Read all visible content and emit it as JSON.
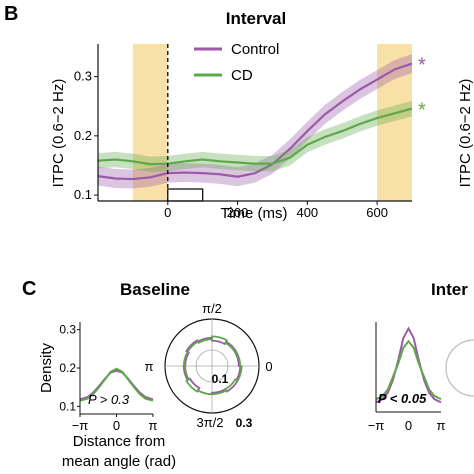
{
  "colors": {
    "control": "#9b59a8",
    "cd": "#5fa84a",
    "highlight": "#f6dc97"
  },
  "panel_b": {
    "letter": "B",
    "title": "Interval"
  },
  "panel_c": {
    "letter": "C",
    "baseline_title": "Baseline",
    "interval_title": "Inter"
  },
  "chart_data": [
    {
      "type": "line",
      "title": "Interval",
      "xlabel": "Time (ms)",
      "ylabel": "ITPC (0.6−2 Hz)",
      "xlim": [
        -200,
        700
      ],
      "ylim": [
        0.09,
        0.355
      ],
      "xticks": [
        0,
        200,
        400,
        600
      ],
      "yticks": [
        0.1,
        0.2,
        0.3
      ],
      "shaded_windows": [
        [
          -100,
          0
        ],
        [
          600,
          700
        ]
      ],
      "onset_line_x": 0,
      "stimulus_box": [
        0,
        100
      ],
      "x": [
        -200,
        -150,
        -100,
        -50,
        0,
        50,
        100,
        150,
        200,
        250,
        300,
        350,
        400,
        450,
        500,
        550,
        600,
        650,
        700
      ],
      "series": [
        {
          "name": "Control",
          "key": "control",
          "values": [
            0.132,
            0.128,
            0.127,
            0.13,
            0.137,
            0.138,
            0.137,
            0.135,
            0.131,
            0.137,
            0.152,
            0.178,
            0.208,
            0.236,
            0.258,
            0.278,
            0.295,
            0.312,
            0.322
          ],
          "band": 0.016,
          "significance": "*"
        },
        {
          "name": "CD",
          "key": "cd",
          "values": [
            0.158,
            0.16,
            0.157,
            0.152,
            0.153,
            0.157,
            0.16,
            0.157,
            0.155,
            0.153,
            0.153,
            0.163,
            0.185,
            0.198,
            0.208,
            0.22,
            0.23,
            0.238,
            0.246
          ],
          "band": 0.013,
          "significance": "*"
        }
      ],
      "legend_position": "top-center"
    },
    {
      "type": "line",
      "ylabel": "ITPC (0.6−2 Hz)"
    },
    {
      "type": "line",
      "title": "Baseline",
      "xlabel": "Distance from mean angle (rad)",
      "ylabel": "Density",
      "xticks": [
        "−π",
        "0",
        "π"
      ],
      "yticks": [
        0.1,
        0.2,
        0.3
      ],
      "ylim": [
        0.08,
        0.32
      ],
      "annotation": "P > 0.3",
      "x": [
        -3.14,
        -2.5,
        -2.0,
        -1.5,
        -1.0,
        -0.5,
        0,
        0.5,
        1.0,
        1.5,
        2.0,
        2.5,
        3.14
      ],
      "series": [
        {
          "name": "Control",
          "key": "control",
          "values": [
            0.118,
            0.124,
            0.136,
            0.153,
            0.172,
            0.188,
            0.193,
            0.188,
            0.172,
            0.153,
            0.136,
            0.124,
            0.118
          ]
        },
        {
          "name": "CD",
          "key": "cd",
          "values": [
            0.115,
            0.12,
            0.132,
            0.15,
            0.17,
            0.19,
            0.198,
            0.19,
            0.17,
            0.15,
            0.132,
            0.12,
            0.115
          ]
        }
      ]
    },
    {
      "type": "line",
      "polar": true,
      "angle_labels": [
        "π/2",
        "π",
        "0",
        "3π/2"
      ],
      "radius_labels": [
        "0.1",
        "0.3"
      ],
      "series": [
        {
          "name": "Control",
          "key": "control",
          "values": [
            0.19,
            0.2,
            0.18,
            0.2,
            0.21,
            0.19,
            0.2,
            0.18,
            0.2,
            0.19,
            0.21,
            0.2
          ]
        },
        {
          "name": "CD",
          "key": "cd",
          "values": [
            0.2,
            0.19,
            0.21,
            0.19,
            0.2,
            0.2,
            0.19,
            0.21,
            0.2,
            0.2,
            0.19,
            0.21
          ]
        }
      ]
    },
    {
      "type": "line",
      "title": "Inter",
      "xticks": [
        "−π",
        "0",
        "π"
      ],
      "annotation": "P < 0.05",
      "x": [
        -3.14,
        -2.5,
        -2.0,
        -1.5,
        -1.0,
        -0.5,
        0,
        0.5,
        1.0,
        1.5,
        2.0,
        2.5,
        3.14
      ],
      "series": [
        {
          "name": "Control",
          "key": "control",
          "values": [
            0.09,
            0.1,
            0.12,
            0.16,
            0.22,
            0.29,
            0.32,
            0.29,
            0.22,
            0.16,
            0.12,
            0.1,
            0.09
          ]
        },
        {
          "name": "CD",
          "key": "cd",
          "values": [
            0.1,
            0.11,
            0.13,
            0.17,
            0.21,
            0.26,
            0.28,
            0.26,
            0.21,
            0.17,
            0.13,
            0.11,
            0.1
          ]
        }
      ]
    }
  ]
}
